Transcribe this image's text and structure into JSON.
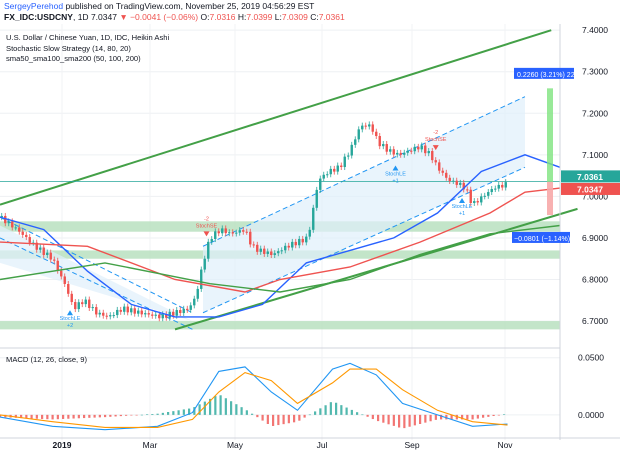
{
  "header": {
    "author": "SergeyPerehod",
    "published": "published on TradingView.com, November 25, 2019 04:56:29 EST",
    "symbol": "FX_IDC:USDCNY",
    "interval": "1D",
    "last": "7.0347",
    "change": "▼ −0.0041 (−0.06%)",
    "o_label": "O:",
    "o": "7.0316",
    "h_label": "H:",
    "h": "7.0399",
    "l_label": "L:",
    "l": "7.0309",
    "c_label": "C:",
    "c": "7.0361"
  },
  "legend": {
    "title": "U.S. Dollar / Chinese Yuan, 1D, IDC, Heikin Ashi",
    "study1": "Stochastic Slow Strategy (14, 80, 20)",
    "study2": "sma50_sma100_sma200 (50, 100, 200)"
  },
  "macd_label": "MACD (12, 26, close, 9)",
  "colors": {
    "up": "#26a69a",
    "down": "#ef5350",
    "sma50": "#2962ff",
    "sma100": "#ef5350",
    "sma200": "#43a047",
    "channel": "#2196f3",
    "zone": "#b9e0c0",
    "macd": "#2196f3",
    "signal": "#ff9800"
  },
  "chart_data": [
    {
      "type": "candlestick",
      "title": "U.S. Dollar / Chinese Yuan, 1D, IDC, Heikin Ashi",
      "x_ticks": [
        "2019",
        "Mar",
        "May",
        "Jul",
        "Sep",
        "Nov"
      ],
      "ylim": [
        6.64,
        7.41
      ],
      "y_ticks": [
        "6.7000",
        "6.8000",
        "6.9000",
        "7.0000",
        "7.1000",
        "7.2000",
        "7.3000",
        "7.4000"
      ],
      "series": [
        {
          "name": "sma50",
          "values": [
            [
              0,
              6.95
            ],
            [
              25,
              6.92
            ],
            [
              50,
              6.82
            ],
            [
              75,
              6.74
            ],
            [
              100,
              6.71
            ],
            [
              125,
              6.71
            ],
            [
              150,
              6.74
            ],
            [
              175,
              6.84
            ],
            [
              200,
              6.87
            ],
            [
              225,
              6.9
            ],
            [
              250,
              6.96
            ],
            [
              275,
              7.06
            ],
            [
              300,
              7.1
            ],
            [
              320,
              7.07
            ]
          ]
        },
        {
          "name": "sma100",
          "values": [
            [
              0,
              6.89
            ],
            [
              50,
              6.88
            ],
            [
              100,
              6.8
            ],
            [
              140,
              6.77
            ],
            [
              160,
              6.8
            ],
            [
              200,
              6.83
            ],
            [
              240,
              6.89
            ],
            [
              280,
              6.96
            ],
            [
              300,
              7.01
            ],
            [
              320,
              7.02
            ]
          ]
        },
        {
          "name": "sma200",
          "values": [
            [
              0,
              6.8
            ],
            [
              60,
              6.84
            ],
            [
              120,
              6.79
            ],
            [
              160,
              6.77
            ],
            [
              200,
              6.8
            ],
            [
              240,
              6.86
            ],
            [
              280,
              6.91
            ],
            [
              320,
              6.93
            ]
          ]
        }
      ],
      "close_path": [
        [
          0,
          6.95
        ],
        [
          10,
          6.92
        ],
        [
          20,
          6.88
        ],
        [
          30,
          6.85
        ],
        [
          38,
          6.78
        ],
        [
          42,
          6.73
        ],
        [
          48,
          6.75
        ],
        [
          55,
          6.72
        ],
        [
          62,
          6.71
        ],
        [
          70,
          6.73
        ],
        [
          80,
          6.72
        ],
        [
          92,
          6.71
        ],
        [
          100,
          6.72
        ],
        [
          108,
          6.73
        ],
        [
          112,
          6.76
        ],
        [
          116,
          6.84
        ],
        [
          120,
          6.9
        ],
        [
          126,
          6.92
        ],
        [
          132,
          6.91
        ],
        [
          140,
          6.92
        ],
        [
          144,
          6.88
        ],
        [
          148,
          6.87
        ],
        [
          156,
          6.86
        ],
        [
          164,
          6.88
        ],
        [
          170,
          6.89
        ],
        [
          176,
          6.9
        ],
        [
          182,
          7.04
        ],
        [
          188,
          7.06
        ],
        [
          194,
          7.07
        ],
        [
          200,
          7.11
        ],
        [
          206,
          7.17
        ],
        [
          212,
          7.17
        ],
        [
          216,
          7.13
        ],
        [
          222,
          7.11
        ],
        [
          228,
          7.1
        ],
        [
          234,
          7.11
        ],
        [
          240,
          7.12
        ],
        [
          246,
          7.1
        ],
        [
          250,
          7.07
        ],
        [
          256,
          7.04
        ],
        [
          262,
          7.03
        ],
        [
          266,
          7.02
        ],
        [
          270,
          6.98
        ],
        [
          276,
          7.0
        ],
        [
          282,
          7.02
        ],
        [
          290,
          7.03
        ]
      ],
      "signals": [
        {
          "label": "StochLE",
          "value": "+2",
          "at": 40
        },
        {
          "label": "StochSE",
          "value": "-2",
          "at": 118
        },
        {
          "label": "StochLE",
          "value": "+1",
          "at": 226
        },
        {
          "label": "StochSE",
          "value": "-2",
          "at": 249
        },
        {
          "label": "StochLE",
          "value": "+1",
          "at": 264
        }
      ],
      "measure_up": "0.2260 (3.21%) 22",
      "measure_down": "−0.0801 (−1.14%)",
      "price_labels": [
        "7.0361",
        "7.0347"
      ]
    },
    {
      "type": "bar",
      "title": "MACD (12, 26, close, 9)",
      "ylim": [
        -0.015,
        0.055
      ],
      "y_ticks": [
        "0.0000",
        "0.0500"
      ],
      "series": [
        {
          "name": "MACD",
          "values": [
            [
              0,
              -0.002
            ],
            [
              30,
              -0.01
            ],
            [
              60,
              -0.013
            ],
            [
              90,
              -0.01
            ],
            [
              110,
              0.002
            ],
            [
              125,
              0.038
            ],
            [
              140,
              0.042
            ],
            [
              155,
              0.02
            ],
            [
              170,
              0.004
            ],
            [
              190,
              0.04
            ],
            [
              200,
              0.045
            ],
            [
              215,
              0.035
            ],
            [
              230,
              0.01
            ],
            [
              250,
              0.0
            ],
            [
              270,
              -0.01
            ],
            [
              290,
              -0.008
            ]
          ]
        },
        {
          "name": "Signal",
          "values": [
            [
              0,
              0.0
            ],
            [
              30,
              -0.006
            ],
            [
              60,
              -0.011
            ],
            [
              90,
              -0.011
            ],
            [
              110,
              -0.004
            ],
            [
              125,
              0.02
            ],
            [
              140,
              0.037
            ],
            [
              155,
              0.03
            ],
            [
              170,
              0.01
            ],
            [
              190,
              0.028
            ],
            [
              200,
              0.04
            ],
            [
              215,
              0.04
            ],
            [
              230,
              0.022
            ],
            [
              250,
              0.004
            ],
            [
              270,
              -0.006
            ],
            [
              290,
              -0.009
            ]
          ]
        }
      ]
    }
  ]
}
